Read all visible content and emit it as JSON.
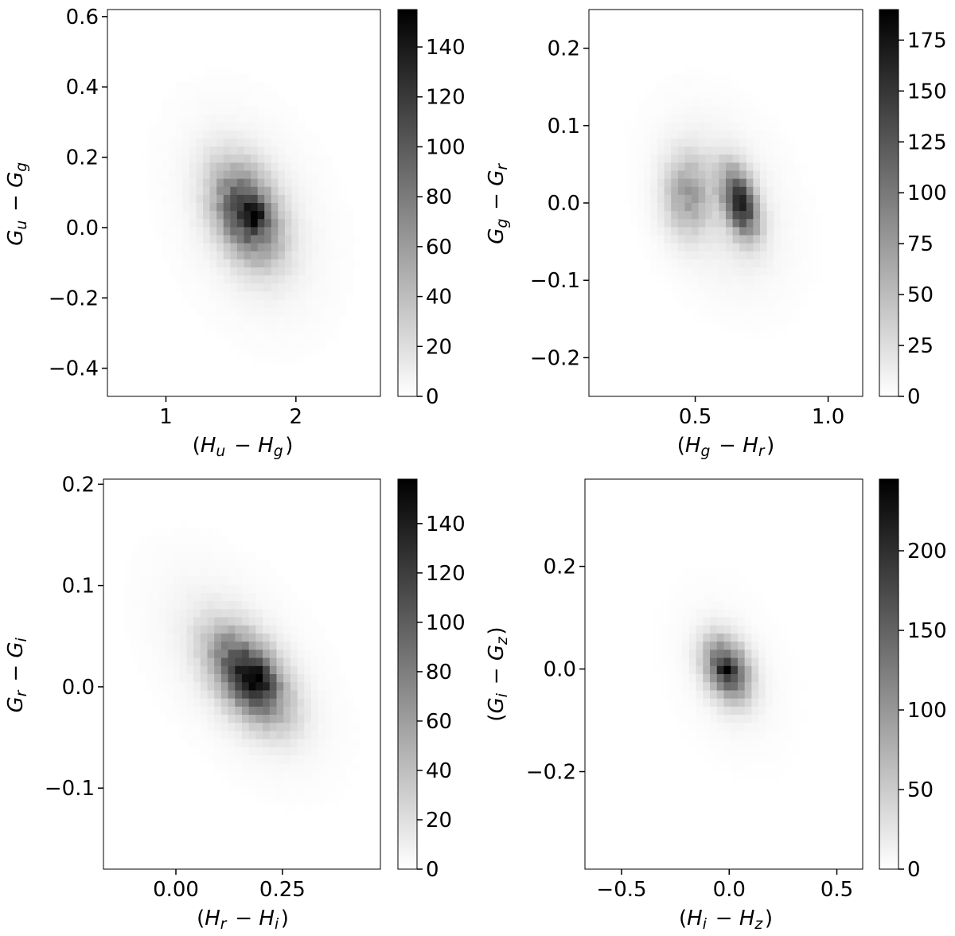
{
  "chart_data": [
    {
      "type": "heatmap",
      "xlabel": "(H_u − H_g)",
      "ylabel": "G_u − G_g",
      "xlim": [
        0.55,
        2.65
      ],
      "ylim": [
        -0.48,
        0.62
      ],
      "xticks": [
        1,
        2
      ],
      "yticks": [
        -0.4,
        -0.2,
        0.0,
        0.2,
        0.4,
        0.6
      ],
      "xtick_labels": [
        "1",
        "2"
      ],
      "ytick_labels": [
        "−0.4",
        "−0.2",
        "0.0",
        "0.2",
        "0.4",
        "0.6"
      ],
      "colorbar": {
        "min": 0,
        "max": 155,
        "ticks": [
          0,
          20,
          40,
          60,
          80,
          100,
          120,
          140
        ],
        "labels": [
          "0",
          "20",
          "40",
          "60",
          "80",
          "100",
          "120",
          "140"
        ]
      },
      "bins": [
        40,
        48
      ],
      "blobs": [
        {
          "cx": 1.62,
          "cy": 0.04,
          "sx": 0.17,
          "sy": 0.09,
          "rho": -0.35,
          "amp": 110
        },
        {
          "cx": 1.68,
          "cy": 0.04,
          "sx": 0.05,
          "sy": 0.025,
          "rho": 0.0,
          "amp": 50
        },
        {
          "cx": 1.65,
          "cy": 0.03,
          "sx": 0.35,
          "sy": 0.18,
          "rho": -0.3,
          "amp": 12
        }
      ]
    },
    {
      "type": "heatmap",
      "xlabel": "(H_g − H_r)",
      "ylabel": "G_g − G_r",
      "xlim": [
        0.1,
        1.13
      ],
      "ylim": [
        -0.25,
        0.25
      ],
      "xticks": [
        0.5,
        1.0
      ],
      "yticks": [
        -0.2,
        -0.1,
        0.0,
        0.1,
        0.2
      ],
      "xtick_labels": [
        "0.5",
        "1.0"
      ],
      "ytick_labels": [
        "−0.2",
        "−0.1",
        "0.0",
        "0.1",
        "0.2"
      ],
      "colorbar": {
        "min": 0,
        "max": 190,
        "ticks": [
          0,
          25,
          50,
          75,
          100,
          125,
          150,
          175
        ],
        "labels": [
          "0",
          "25",
          "50",
          "75",
          "100",
          "125",
          "150",
          "175"
        ]
      },
      "bins": [
        40,
        48
      ],
      "blobs": [
        {
          "cx": 0.67,
          "cy": 0.0,
          "sx": 0.045,
          "sy": 0.03,
          "rho": -0.4,
          "amp": 150
        },
        {
          "cx": 0.47,
          "cy": 0.01,
          "sx": 0.06,
          "sy": 0.035,
          "rho": 0.0,
          "amp": 60
        },
        {
          "cx": 0.6,
          "cy": 0.0,
          "sx": 0.15,
          "sy": 0.07,
          "rho": -0.3,
          "amp": 18
        }
      ]
    },
    {
      "type": "heatmap",
      "xlabel": "(H_r − H_i)",
      "ylabel": "G_r − G_i",
      "xlim": [
        -0.17,
        0.48
      ],
      "ylim": [
        -0.18,
        0.205
      ],
      "xticks": [
        0.0,
        0.25
      ],
      "yticks": [
        -0.1,
        0.0,
        0.1,
        0.2
      ],
      "xtick_labels": [
        "0.00",
        "0.25"
      ],
      "ytick_labels": [
        "−0.1",
        "0.0",
        "0.1",
        "0.2"
      ],
      "colorbar": {
        "min": 0,
        "max": 158,
        "ticks": [
          0,
          20,
          40,
          60,
          80,
          100,
          120,
          140
        ],
        "labels": [
          "0",
          "20",
          "40",
          "60",
          "80",
          "100",
          "120",
          "140"
        ]
      },
      "bins": [
        40,
        48
      ],
      "blobs": [
        {
          "cx": 0.17,
          "cy": 0.01,
          "sx": 0.06,
          "sy": 0.03,
          "rho": -0.5,
          "amp": 120
        },
        {
          "cx": 0.19,
          "cy": 0.007,
          "sx": 0.025,
          "sy": 0.014,
          "rho": 0.0,
          "amp": 40
        },
        {
          "cx": 0.15,
          "cy": 0.02,
          "sx": 0.12,
          "sy": 0.06,
          "rho": -0.5,
          "amp": 12
        }
      ]
    },
    {
      "type": "heatmap",
      "xlabel": "(H_i − H_z)",
      "ylabel": "(G_i − G_z)",
      "xlim": [
        -0.67,
        0.62
      ],
      "ylim": [
        -0.39,
        0.37
      ],
      "xticks": [
        -0.5,
        0.0,
        0.5
      ],
      "yticks": [
        -0.2,
        0.0,
        0.2
      ],
      "xtick_labels": [
        "−0.5",
        "0.0",
        "0.5"
      ],
      "ytick_labels": [
        "−0.2",
        "0.0",
        "0.2"
      ],
      "colorbar": {
        "min": 0,
        "max": 245,
        "ticks": [
          0,
          50,
          100,
          150,
          200
        ],
        "labels": [
          "0",
          "50",
          "100",
          "150",
          "200"
        ]
      },
      "bins": [
        40,
        48
      ],
      "blobs": [
        {
          "cx": -0.01,
          "cy": 0.0,
          "sx": 0.07,
          "sy": 0.04,
          "rho": -0.3,
          "amp": 170
        },
        {
          "cx": -0.01,
          "cy": 0.0,
          "sx": 0.025,
          "sy": 0.012,
          "rho": 0.0,
          "amp": 70
        },
        {
          "cx": 0.0,
          "cy": -0.01,
          "sx": 0.15,
          "sy": 0.09,
          "rho": -0.3,
          "amp": 12
        }
      ]
    }
  ]
}
